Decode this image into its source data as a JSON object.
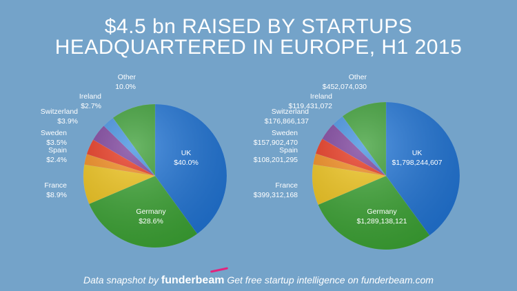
{
  "title_line1": "$4.5 bn RAISED BY STARTUPS",
  "title_line2": "HEADQUARTERED IN EUROPE, H1 2015",
  "footer": {
    "prefix": "Data snapshot by",
    "brand": "funderbeam",
    "suffix": "Get free startup intelligence on funderbeam.com"
  },
  "chart_data": [
    {
      "type": "pie",
      "title": "",
      "categories": [
        "UK",
        "Germany",
        "France",
        "Spain",
        "Sweden",
        "Switzerland",
        "Ireland",
        "Other"
      ],
      "values": [
        40.0,
        28.6,
        8.9,
        2.4,
        3.5,
        3.9,
        2.7,
        10.0
      ],
      "labels": [
        "$40.0%",
        "$28.6%",
        "$8.9%",
        "$2.4%",
        "$3.5%",
        "$3.9%",
        "$2.7%",
        "10.0%"
      ],
      "colors": [
        "#1f74d6",
        "#3aa332",
        "#f0c419",
        "#f28a1a",
        "#e8331a",
        "#7a3d9a",
        "#3f8fe0",
        "#3a9e34"
      ]
    },
    {
      "type": "pie",
      "title": "",
      "categories": [
        "UK",
        "Germany",
        "France",
        "Spain",
        "Sweden",
        "Switzerland",
        "Ireland",
        "Other"
      ],
      "values": [
        1798244607,
        1289138121,
        399312168,
        108201295,
        157902470,
        176866137,
        119431072,
        452074030
      ],
      "labels": [
        "$1,798,244,607",
        "$1,289,138,121",
        "$399,312,168",
        "$108,201,295",
        "$157,902,470",
        "$176,866,137",
        "$119,431,072",
        "$452,074,030"
      ],
      "colors": [
        "#1f74d6",
        "#3aa332",
        "#f0c419",
        "#f28a1a",
        "#e8331a",
        "#7a3d9a",
        "#3f8fe0",
        "#3a9e34"
      ]
    }
  ]
}
